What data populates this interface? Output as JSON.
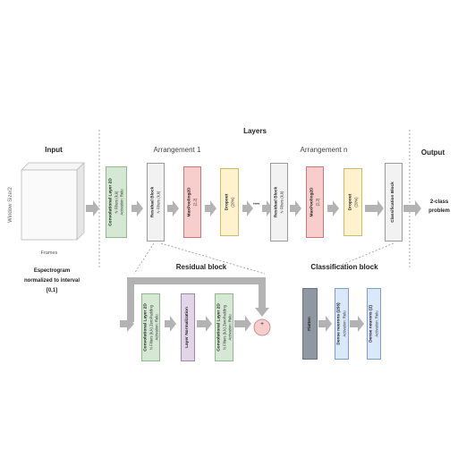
{
  "headers": {
    "input": "Input",
    "layers": "Layers",
    "output": "Output",
    "arrangement_1": "Arrangement 1",
    "arrangement_n": "Arrangement n",
    "residual_block": "Residual block",
    "classification_block": "Classification block"
  },
  "input": {
    "y_label": "Window Size/2",
    "x_label": "Frames",
    "caption_line1": "Espectrogram",
    "caption_line2": "normalized to interval",
    "caption_line3": "[0,1]"
  },
  "output": {
    "line1": "2-class",
    "line2": "problem"
  },
  "layers": {
    "conv": {
      "title": "Convolutional Layer 2D",
      "line1": "N Filters (k,k)",
      "line2": "Activation: Relu"
    },
    "res1": {
      "title": "Residual Block",
      "line1": "N Filters (k,k)"
    },
    "pool1": {
      "title": "MaxPooling2D",
      "line1": "(2,2)"
    },
    "drop1": {
      "title": "Dropout",
      "line1": "(20%)"
    },
    "dots": "• • • •",
    "resn": {
      "title": "Residual Block",
      "line1": "N Filters (k,k)"
    },
    "pooln": {
      "title": "MaxPooling2D",
      "line1": "(2,2)"
    },
    "dropn": {
      "title": "Dropout",
      "line1": "(20%)"
    },
    "classif": {
      "title": "Classification Block"
    }
  },
  "residual": {
    "conv_a": {
      "title": "Convolutional Layer 2D",
      "line1": "N Filters (k,k)  ZeroPadding",
      "line2": "Activation: Relu"
    },
    "norm": {
      "title": "Layer Normalization"
    },
    "conv_b": {
      "title": "Convolutional Layer 2D",
      "line1": "N Filters (k,k)  ZeroPadding",
      "line2": "Activation: Relu"
    },
    "add_symbol": "+"
  },
  "classification": {
    "flatten": {
      "title": "Flatten"
    },
    "dense1": {
      "title": "Dense neurons (256)",
      "line1": "Activation: Relu"
    },
    "dense2": {
      "title": "Dense neurons (2)",
      "line1": "Activation: Relu"
    }
  },
  "colors": {
    "arrow": "#b3b3b3",
    "green": "#d5e8d4",
    "red": "#f8cecc",
    "yellow": "#fff2cc",
    "gray": "#f2f2f2",
    "purple": "#e1d5e7",
    "slate": "#8e97a2",
    "blue": "#dae8fc"
  }
}
